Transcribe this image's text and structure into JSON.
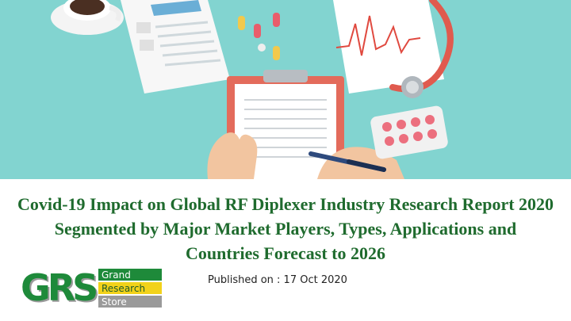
{
  "slide": {
    "title": "Covid-19 Impact on Global RF Diplexer Industry Research Report 2020 Segmented by Major Market Players, Types, Applications and Countries Forecast to 2026",
    "published": "Published on : 17 Oct 2020"
  },
  "logo": {
    "letters": "GRS",
    "line1": "Grand",
    "line2": "Research",
    "line3": "Store",
    "colors": {
      "green": "#1e8a3a",
      "yellow": "#f2d21a",
      "gray": "#9a9a9a"
    }
  },
  "hero": {
    "background": "#7fd3cf",
    "icons": [
      "coffee-cup-icon",
      "clipboard-icon",
      "stethoscope-icon",
      "ecg-chart-icon",
      "pill-blister-icon",
      "pen-icon",
      "capsule-icon"
    ]
  }
}
